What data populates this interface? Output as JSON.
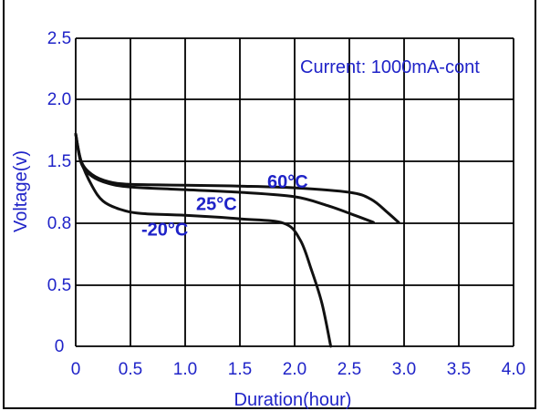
{
  "chart_data": {
    "type": "line",
    "title": "",
    "xlabel": "Duration(hour)",
    "ylabel": "Voltage(v)",
    "annotation": "Current: 1000mA-cont",
    "x_tick_labels": [
      "0",
      "0.5",
      "1.0",
      "1.5",
      "2.0",
      "2.5",
      "3.0",
      "3.5",
      "4.0"
    ],
    "y_tick_labels": [
      "0",
      "0.5",
      "0.8",
      "1.5",
      "2.0",
      "2.5"
    ],
    "xlim": [
      0,
      4.0
    ],
    "grid": true,
    "colors": {
      "text": "#1f23c8",
      "line": "#111111",
      "grid": "#000000"
    },
    "series": [
      {
        "name": "60°C",
        "label_at": [
          1.75,
          1.2
        ],
        "points": [
          [
            0,
            1.72
          ],
          [
            0.05,
            1.5
          ],
          [
            0.15,
            1.35
          ],
          [
            0.3,
            1.27
          ],
          [
            0.5,
            1.24
          ],
          [
            1.0,
            1.23
          ],
          [
            1.5,
            1.22
          ],
          [
            2.0,
            1.2
          ],
          [
            2.5,
            1.15
          ],
          [
            2.7,
            1.07
          ],
          [
            2.85,
            0.92
          ],
          [
            2.95,
            0.81
          ]
        ]
      },
      {
        "name": "25°C",
        "label_at": [
          1.1,
          0.95
        ],
        "points": [
          [
            0,
            1.72
          ],
          [
            0.05,
            1.48
          ],
          [
            0.15,
            1.33
          ],
          [
            0.3,
            1.25
          ],
          [
            0.5,
            1.21
          ],
          [
            1.0,
            1.18
          ],
          [
            1.5,
            1.15
          ],
          [
            2.0,
            1.1
          ],
          [
            2.3,
            1.0
          ],
          [
            2.55,
            0.89
          ],
          [
            2.72,
            0.81
          ]
        ]
      },
      {
        "name": "-20°C",
        "label_at": [
          0.6,
          0.74
        ],
        "points": [
          [
            0,
            1.72
          ],
          [
            0.05,
            1.5
          ],
          [
            0.15,
            1.22
          ],
          [
            0.25,
            1.05
          ],
          [
            0.4,
            0.96
          ],
          [
            0.6,
            0.91
          ],
          [
            1.0,
            0.89
          ],
          [
            1.5,
            0.85
          ],
          [
            1.9,
            0.8
          ],
          [
            2.05,
            0.72
          ],
          [
            2.15,
            0.58
          ],
          [
            2.25,
            0.35
          ],
          [
            2.33,
            0.0
          ]
        ]
      }
    ]
  }
}
